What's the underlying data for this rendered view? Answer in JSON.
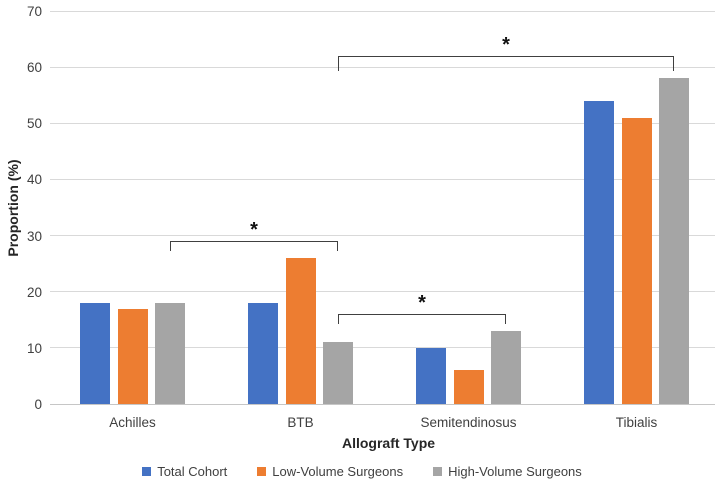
{
  "chart_data": {
    "type": "bar",
    "title": "",
    "xlabel": "Allograft Type",
    "ylabel": "Proportion (%)",
    "categories": [
      "Achilles",
      "BTB",
      "Semitendinosus",
      "Tibialis"
    ],
    "series": [
      {
        "name": "Total Cohort",
        "color": "#4472C4",
        "values": [
          18,
          18,
          10,
          54
        ]
      },
      {
        "name": "Low-Volume Surgeons",
        "color": "#ED7D31",
        "values": [
          17,
          26,
          6,
          51
        ]
      },
      {
        "name": "High-Volume Surgeons",
        "color": "#A5A5A5",
        "values": [
          18,
          11,
          13,
          58
        ]
      }
    ],
    "ylim": [
      0,
      70
    ],
    "yticks": [
      0,
      10,
      20,
      30,
      40,
      50,
      60,
      70
    ],
    "grid": true,
    "legend_position": "bottom",
    "significance_brackets": [
      {
        "label": "*",
        "from_category": "Achilles",
        "to_category": "BTB",
        "series": "High-Volume Surgeons",
        "bar_y_value": 29,
        "drop_value": 1.8
      },
      {
        "label": "*",
        "from_category": "BTB",
        "to_category": "Semitendinosus",
        "series": "High-Volume Surgeons",
        "bar_y_value": 16,
        "drop_value": 1.8
      },
      {
        "label": "*",
        "from_category": "BTB",
        "to_category": "Tibialis",
        "series": "High-Volume Surgeons",
        "bar_y_value": 62,
        "drop_value": 2.7
      }
    ]
  },
  "style": {
    "background": "#ffffff",
    "grid_color": "#D9D9D9",
    "axis_line_color": "#C6C6C6",
    "tick_label_color": "#404040",
    "axis_title_color": "#262626",
    "bracket_color": "#404040",
    "asterisk_color": "#111111",
    "legend_text_color": "#404040"
  }
}
